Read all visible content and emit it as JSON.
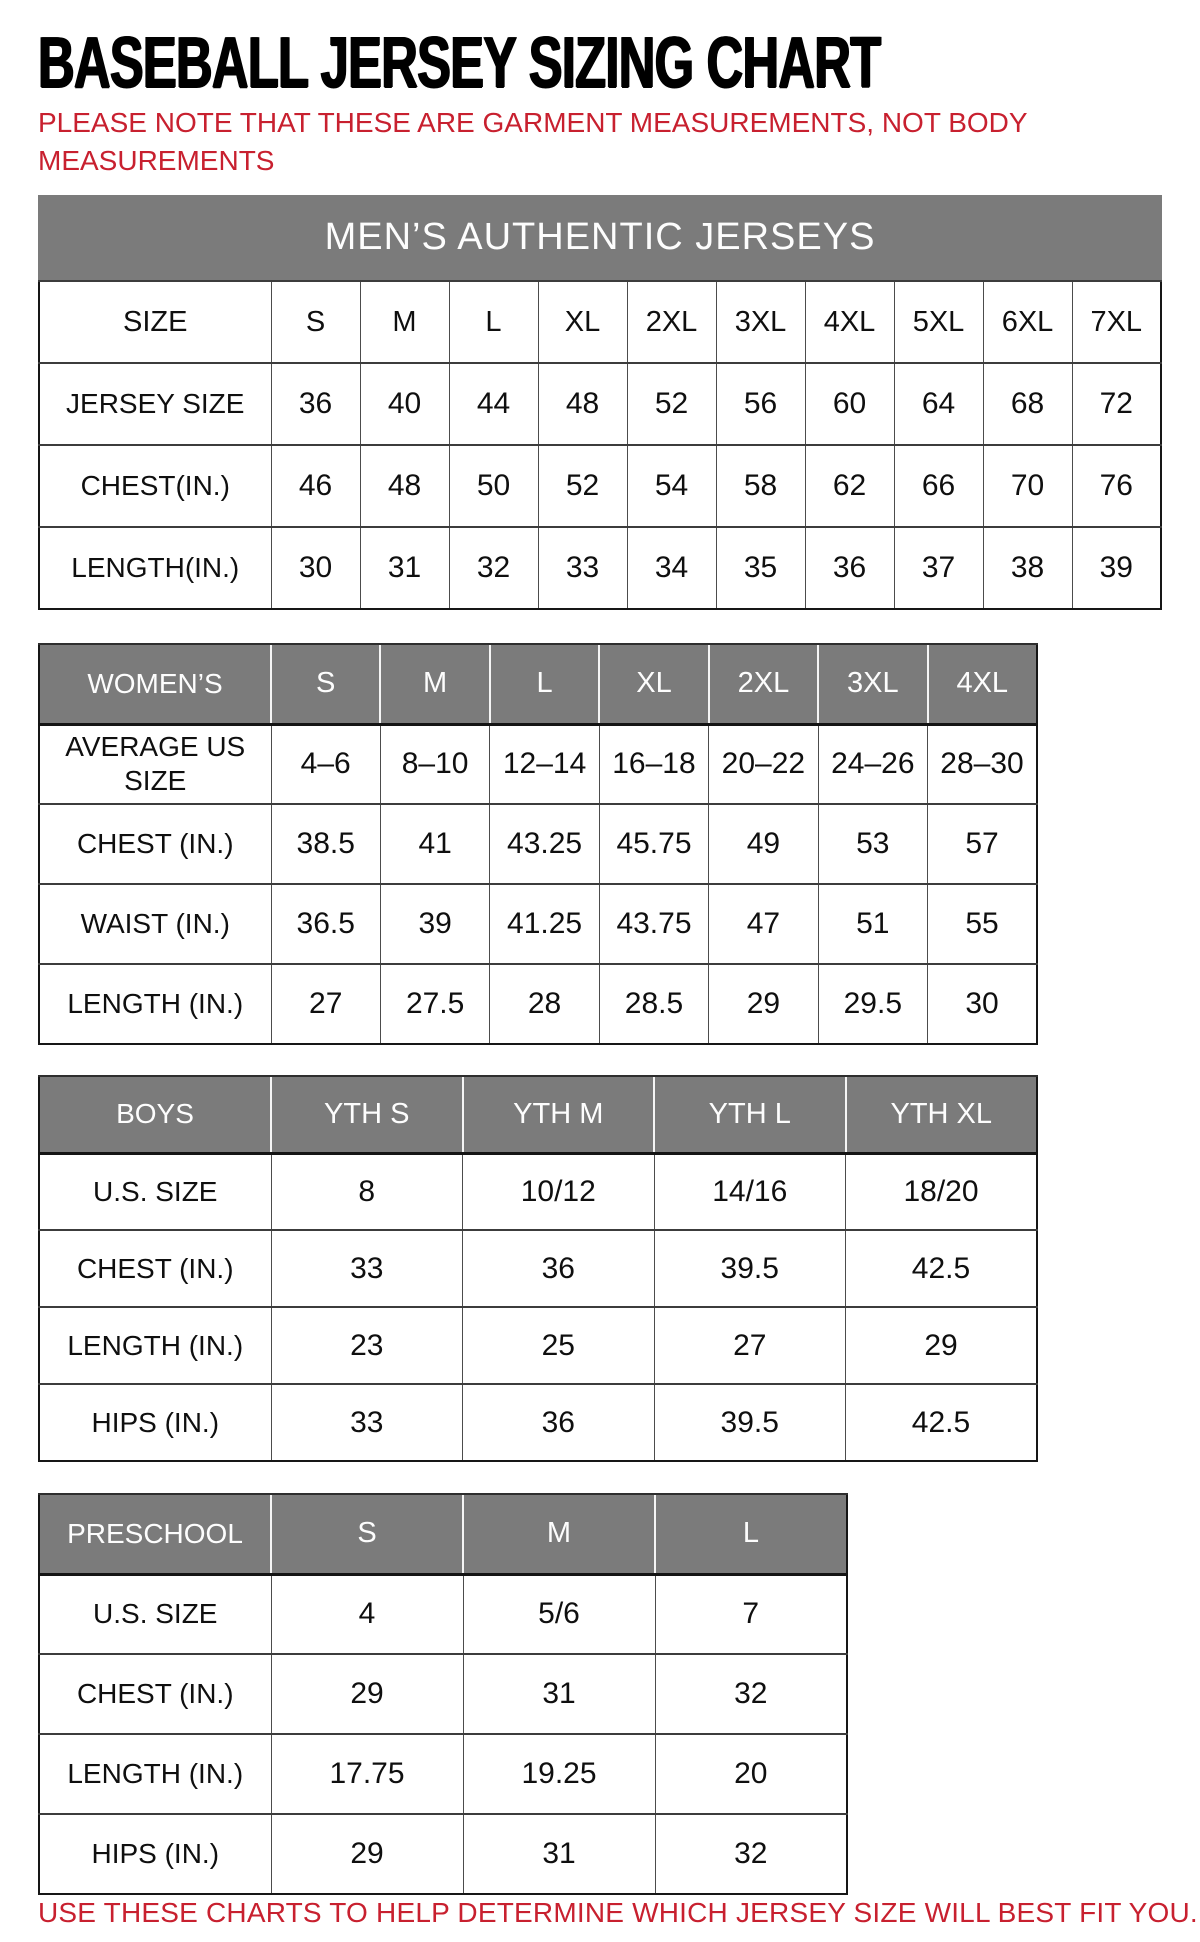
{
  "page": {
    "title": "BASEBALL JERSEY SIZING CHART",
    "subtitle_lines": [
      "PLEASE NOTE THAT THESE ARE GARMENT MEASUREMENTS, NOT BODY",
      "MEASUREMENTS"
    ],
    "footer": "USE THESE CHARTS TO HELP DETERMINE WHICH JERSEY SIZE WILL BEST FIT YOU."
  },
  "colors": {
    "accent_red": "#c8202f",
    "header_gray": "#7b7b7b",
    "header_text": "#fdfdfd",
    "border_dark": "#161616",
    "cell_text": "#0f0f0f"
  },
  "tables": {
    "mens": {
      "banner": "MEN’S AUTHENTIC JERSEYS",
      "header_row": {
        "label": "SIZE",
        "cells": [
          "S",
          "M",
          "L",
          "XL",
          "2XL",
          "3XL",
          "4XL",
          "5XL",
          "6XL",
          "7XL"
        ]
      },
      "rows": [
        {
          "label": "JERSEY SIZE",
          "cells": [
            "36",
            "40",
            "44",
            "48",
            "52",
            "56",
            "60",
            "64",
            "68",
            "72"
          ]
        },
        {
          "label": "CHEST(IN.)",
          "cells": [
            "46",
            "48",
            "50",
            "52",
            "54",
            "58",
            "62",
            "66",
            "70",
            "76"
          ]
        },
        {
          "label": "LENGTH(IN.)",
          "cells": [
            "30",
            "31",
            "32",
            "33",
            "34",
            "35",
            "36",
            "37",
            "38",
            "39"
          ]
        }
      ]
    },
    "womens": {
      "header_row": {
        "label": "WOMEN’S",
        "cells": [
          "S",
          "M",
          "L",
          "XL",
          "2XL",
          "3XL",
          "4XL"
        ]
      },
      "rows": [
        {
          "label": "AVERAGE US SIZE",
          "cells": [
            "4–6",
            "8–10",
            "12–14",
            "16–18",
            "20–22",
            "24–26",
            "28–30"
          ]
        },
        {
          "label": "CHEST (IN.)",
          "cells": [
            "38.5",
            "41",
            "43.25",
            "45.75",
            "49",
            "53",
            "57"
          ]
        },
        {
          "label": "WAIST (IN.)",
          "cells": [
            "36.5",
            "39",
            "41.25",
            "43.75",
            "47",
            "51",
            "55"
          ]
        },
        {
          "label": "LENGTH (IN.)",
          "cells": [
            "27",
            "27.5",
            "28",
            "28.5",
            "29",
            "29.5",
            "30"
          ]
        }
      ]
    },
    "boys": {
      "header_row": {
        "label": "BOYS",
        "cells": [
          "YTH S",
          "YTH M",
          "YTH L",
          "YTH XL"
        ]
      },
      "rows": [
        {
          "label": "U.S. SIZE",
          "cells": [
            "8",
            "10/12",
            "14/16",
            "18/20"
          ]
        },
        {
          "label": "CHEST (IN.)",
          "cells": [
            "33",
            "36",
            "39.5",
            "42.5"
          ]
        },
        {
          "label": "LENGTH (IN.)",
          "cells": [
            "23",
            "25",
            "27",
            "29"
          ]
        },
        {
          "label": "HIPS (IN.)",
          "cells": [
            "33",
            "36",
            "39.5",
            "42.5"
          ]
        }
      ]
    },
    "preschool": {
      "header_row": {
        "label": "PRESCHOOL",
        "cells": [
          "S",
          "M",
          "L"
        ]
      },
      "rows": [
        {
          "label": "U.S. SIZE",
          "cells": [
            "4",
            "5/6",
            "7"
          ]
        },
        {
          "label": "CHEST (IN.)",
          "cells": [
            "29",
            "31",
            "32"
          ]
        },
        {
          "label": "LENGTH (IN.)",
          "cells": [
            "17.75",
            "19.25",
            "20"
          ]
        },
        {
          "label": "HIPS (IN.)",
          "cells": [
            "29",
            "31",
            "32"
          ]
        }
      ]
    }
  }
}
